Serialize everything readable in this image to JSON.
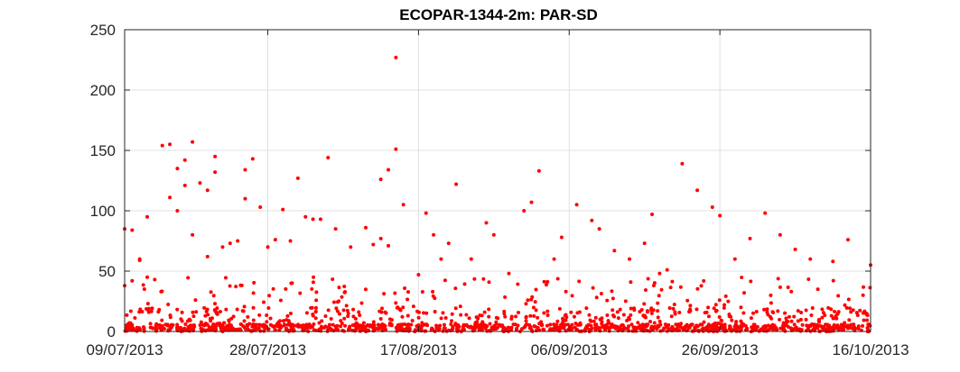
{
  "chart_data": {
    "type": "scatter",
    "title": "ECOPAR-1344-2m: PAR-SD",
    "xlabel": "",
    "ylabel": "",
    "x_ticks": [
      "09/07/2013",
      "28/07/2013",
      "17/08/2013",
      "06/09/2013",
      "26/09/2013",
      "16/10/2013"
    ],
    "xlim": [
      "2013-07-09",
      "2013-10-16"
    ],
    "ylim": [
      0,
      250
    ],
    "y_ticks": [
      0,
      50,
      100,
      150,
      200,
      250
    ],
    "grid": true,
    "marker_color": "#ff0000",
    "series": [
      {
        "x": [
          "2013-07-09",
          "2013-07-09",
          "2013-07-10",
          "2013-07-10",
          "2013-07-11",
          "2013-07-11",
          "2013-07-12",
          "2013-07-12",
          "2013-07-13",
          "2013-07-14",
          "2013-07-15",
          "2013-07-15",
          "2013-07-16",
          "2013-07-16",
          "2013-07-17",
          "2013-07-17",
          "2013-07-18",
          "2013-07-18",
          "2013-07-19",
          "2013-07-20",
          "2013-07-20",
          "2013-07-21",
          "2013-07-21",
          "2013-07-22",
          "2013-07-23",
          "2013-07-24",
          "2013-07-25",
          "2013-07-25",
          "2013-07-26",
          "2013-07-27",
          "2013-07-28",
          "2013-07-29",
          "2013-07-30",
          "2013-07-31",
          "2013-08-01",
          "2013-08-02",
          "2013-08-03",
          "2013-08-04",
          "2013-08-05",
          "2013-08-06",
          "2013-08-08",
          "2013-08-10",
          "2013-08-11",
          "2013-08-12",
          "2013-08-12",
          "2013-08-13",
          "2013-08-13",
          "2013-08-14",
          "2013-08-14",
          "2013-08-15",
          "2013-08-17",
          "2013-08-18",
          "2013-08-19",
          "2013-08-20",
          "2013-08-21",
          "2013-08-22",
          "2013-08-24",
          "2013-08-26",
          "2013-08-27",
          "2013-08-29",
          "2013-08-31",
          "2013-09-01",
          "2013-09-02",
          "2013-09-04",
          "2013-09-05",
          "2013-09-07",
          "2013-09-09",
          "2013-09-10",
          "2013-09-12",
          "2013-09-14",
          "2013-09-16",
          "2013-09-17",
          "2013-09-18",
          "2013-09-19",
          "2013-09-21",
          "2013-09-23",
          "2013-09-25",
          "2013-09-26",
          "2013-09-28",
          "2013-09-30",
          "2013-10-02",
          "2013-10-04",
          "2013-10-06",
          "2013-10-08",
          "2013-10-09",
          "2013-10-11",
          "2013-10-13",
          "2013-10-15",
          "2013-10-16"
        ],
        "y": [
          85,
          38,
          42,
          84,
          60,
          59,
          45,
          95,
          43,
          154,
          155,
          111,
          135,
          100,
          142,
          121,
          157,
          80,
          123,
          117,
          62,
          145,
          132,
          70,
          73,
          75,
          134,
          110,
          143,
          103,
          70,
          76,
          101,
          75,
          127,
          95,
          93,
          93,
          144,
          85,
          70,
          86,
          72,
          126,
          77,
          134,
          71,
          227,
          151,
          105,
          47,
          98,
          80,
          60,
          73,
          122,
          60,
          90,
          80,
          48,
          100,
          107,
          133,
          60,
          78,
          105,
          92,
          85,
          67,
          60,
          73,
          97,
          48,
          51,
          139,
          117,
          103,
          96,
          60,
          77,
          98,
          80,
          68,
          60,
          35,
          58,
          76,
          30,
          55
        ]
      }
    ]
  }
}
